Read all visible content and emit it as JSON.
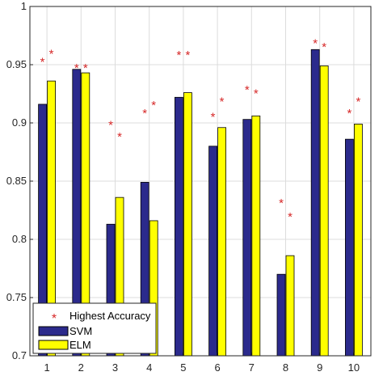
{
  "chart_data": {
    "type": "bar",
    "title": "",
    "xlabel": "",
    "ylabel": "",
    "categories": [
      "1",
      "2",
      "3",
      "4",
      "5",
      "6",
      "7",
      "8",
      "9",
      "10"
    ],
    "ylim": [
      0.7,
      1.0
    ],
    "yticks": [
      "0.7",
      "0.75",
      "0.8",
      "0.85",
      "0.9",
      "0.95",
      "1"
    ],
    "grid": true,
    "legend_position": "bottom-left",
    "series": [
      {
        "name": "SVM",
        "color": "#2b2a8c",
        "values": [
          0.916,
          0.946,
          0.813,
          0.849,
          0.922,
          0.88,
          0.903,
          0.77,
          0.963,
          0.886
        ]
      },
      {
        "name": "ELM",
        "color": "#ffff00",
        "values": [
          0.936,
          0.943,
          0.836,
          0.816,
          0.926,
          0.896,
          0.906,
          0.786,
          0.949,
          0.899
        ]
      }
    ],
    "markers": {
      "name": "Highest Accuracy",
      "symbol": "*",
      "color": "#d62828",
      "svm": [
        0.953,
        0.948,
        0.899,
        0.909,
        0.959,
        0.906,
        0.929,
        0.832,
        0.969,
        0.909
      ],
      "elm": [
        0.96,
        0.948,
        0.889,
        0.916,
        0.959,
        0.919,
        0.926,
        0.82,
        0.966,
        0.919
      ]
    }
  }
}
